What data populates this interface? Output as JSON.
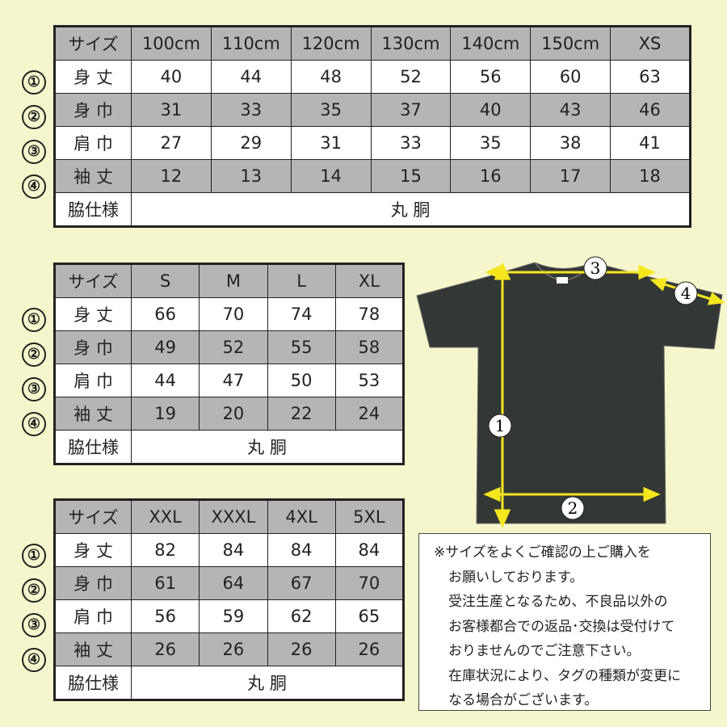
{
  "tables": [
    {
      "header": [
        "サイズ",
        "100cm",
        "110cm",
        "120cm",
        "130cm",
        "140cm",
        "150cm",
        "XS"
      ],
      "rows": [
        {
          "num": "①",
          "label": "身 丈",
          "values": [
            "40",
            "44",
            "48",
            "52",
            "56",
            "60",
            "63"
          ]
        },
        {
          "num": "②",
          "label": "身 巾",
          "values": [
            "31",
            "33",
            "35",
            "37",
            "40",
            "43",
            "46"
          ]
        },
        {
          "num": "③",
          "label": "肩 巾",
          "values": [
            "27",
            "29",
            "31",
            "33",
            "35",
            "38",
            "41"
          ]
        },
        {
          "num": "④",
          "label": "袖 丈",
          "values": [
            "12",
            "13",
            "14",
            "15",
            "16",
            "17",
            "18"
          ]
        }
      ],
      "side": {
        "label": "脇仕様",
        "value": "丸 胴"
      }
    },
    {
      "header": [
        "サイズ",
        "S",
        "M",
        "L",
        "XL"
      ],
      "rows": [
        {
          "num": "①",
          "label": "身 丈",
          "values": [
            "66",
            "70",
            "74",
            "78"
          ]
        },
        {
          "num": "②",
          "label": "身 巾",
          "values": [
            "49",
            "52",
            "55",
            "58"
          ]
        },
        {
          "num": "③",
          "label": "肩 巾",
          "values": [
            "44",
            "47",
            "50",
            "53"
          ]
        },
        {
          "num": "④",
          "label": "袖 丈",
          "values": [
            "19",
            "20",
            "22",
            "24"
          ]
        }
      ],
      "side": {
        "label": "脇仕様",
        "value": "丸 胴"
      }
    },
    {
      "header": [
        "サイズ",
        "XXL",
        "XXXL",
        "4XL",
        "5XL"
      ],
      "rows": [
        {
          "num": "①",
          "label": "身 丈",
          "values": [
            "82",
            "84",
            "84",
            "84"
          ]
        },
        {
          "num": "②",
          "label": "身 巾",
          "values": [
            "61",
            "64",
            "67",
            "70"
          ]
        },
        {
          "num": "③",
          "label": "肩 巾",
          "values": [
            "56",
            "59",
            "62",
            "65"
          ]
        },
        {
          "num": "④",
          "label": "袖 丈",
          "values": [
            "26",
            "26",
            "26",
            "26"
          ]
        }
      ],
      "side": {
        "label": "脇仕様",
        "value": "丸 胴"
      }
    }
  ],
  "diagram": {
    "markers": [
      "1",
      "2",
      "3",
      "4"
    ],
    "arrow_color": "#f5e61e",
    "shirt_color": "#333735"
  },
  "note": {
    "lines": [
      "※サイズをよくご確認の上ご購入を",
      "お願いしております。",
      "受注生産となるため、不良品以外の",
      "お客様都合での返品･交換は受付けて",
      "おりませんのでご注意下さい。",
      "在庫状況により、タグの種類が変更に",
      "なる場合がございます。"
    ]
  }
}
